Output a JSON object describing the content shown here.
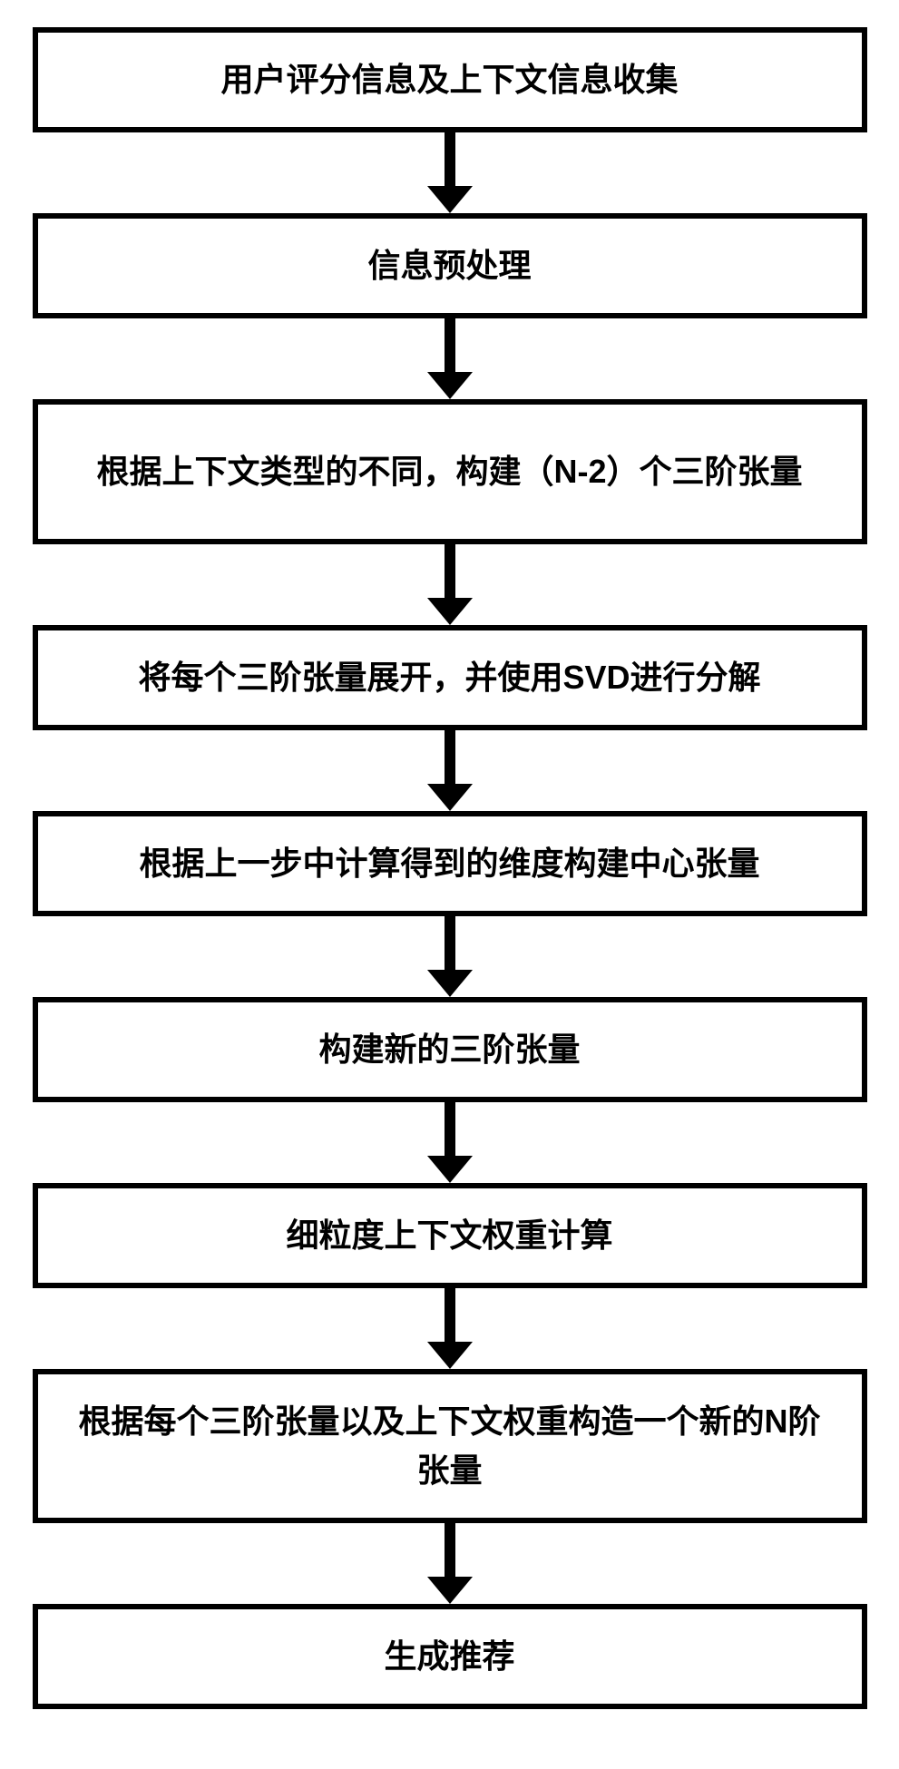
{
  "flowchart": {
    "type": "flowchart",
    "direction": "vertical",
    "background_color": "#ffffff",
    "box_border_color": "#000000",
    "box_border_width": 6,
    "box_fill_color": "#ffffff",
    "text_color": "#000000",
    "font_size": 36,
    "font_weight": "bold",
    "font_family": "Microsoft YaHei",
    "arrow_color": "#000000",
    "arrow_line_width": 12,
    "arrow_line_height": 60,
    "arrow_head_width": 50,
    "arrow_head_height": 30,
    "nodes": [
      {
        "id": "n1",
        "label": "用户评分信息及上下文信息收集",
        "lines": 1
      },
      {
        "id": "n2",
        "label": "信息预处理",
        "lines": 1
      },
      {
        "id": "n3",
        "label": "根据上下文类型的不同，构建（N-2）个三阶张量",
        "lines": 2
      },
      {
        "id": "n4",
        "label": "将每个三阶张量展开，并使用SVD进行分解",
        "lines": 1
      },
      {
        "id": "n5",
        "label": "根据上一步中计算得到的维度构建中心张量",
        "lines": 1
      },
      {
        "id": "n6",
        "label": "构建新的三阶张量",
        "lines": 1
      },
      {
        "id": "n7",
        "label": "细粒度上下文权重计算",
        "lines": 1
      },
      {
        "id": "n8",
        "label": "根据每个三阶张量以及上下文权重构造一个新的N阶张量",
        "lines": 2
      },
      {
        "id": "n9",
        "label": "生成推荐",
        "lines": 1
      }
    ],
    "edges": [
      {
        "from": "n1",
        "to": "n2"
      },
      {
        "from": "n2",
        "to": "n3"
      },
      {
        "from": "n3",
        "to": "n4"
      },
      {
        "from": "n4",
        "to": "n5"
      },
      {
        "from": "n5",
        "to": "n6"
      },
      {
        "from": "n6",
        "to": "n7"
      },
      {
        "from": "n7",
        "to": "n8"
      },
      {
        "from": "n8",
        "to": "n9"
      }
    ]
  }
}
